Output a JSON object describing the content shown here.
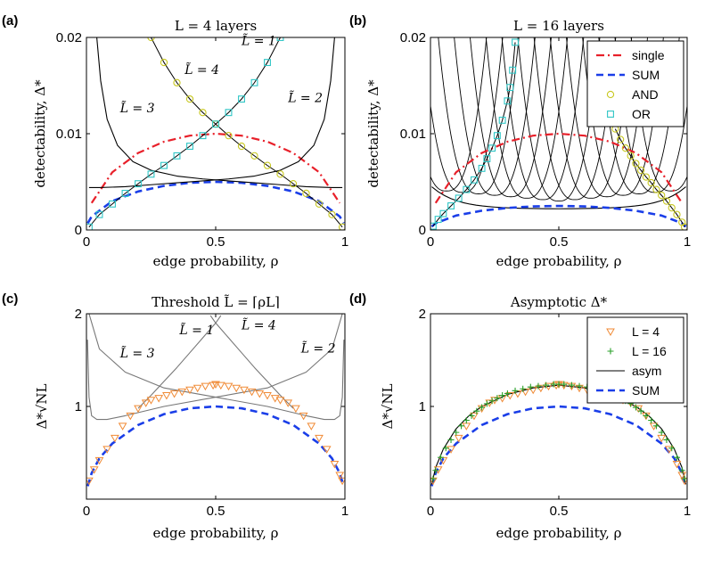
{
  "colors": {
    "single": "#e8202a",
    "sum": "#1a3ee8",
    "and": "#c8c821",
    "or": "#2ec6c6",
    "l4": "#f08a35",
    "l16": "#2aa02a",
    "curve": "#000000",
    "curve_light": "#777777"
  },
  "chart_data": [
    {
      "id": "a",
      "type": "line",
      "panel_label": "(a)",
      "title": "L = 4 layers",
      "xlabel": "edge probability, ρ",
      "ylabel": "detectability, Δ*",
      "xlim": [
        0,
        1
      ],
      "ylim": [
        0,
        0.02
      ],
      "xticks": [
        0,
        0.5,
        1
      ],
      "xtick_labels": [
        "0",
        "0.5",
        "1"
      ],
      "yticks": [
        0,
        0.01,
        0.02
      ],
      "ytick_labels": [
        "0",
        "0.01",
        "0.02"
      ],
      "annotations": [
        {
          "text": "L̃ = 1",
          "x": 0.6,
          "y": 0.0192
        },
        {
          "text": "L̃ = 4",
          "x": 0.38,
          "y": 0.0162
        },
        {
          "text": "L̃ = 3",
          "x": 0.13,
          "y": 0.0122
        },
        {
          "text": "L̃ = 2",
          "x": 0.78,
          "y": 0.0133
        }
      ],
      "series": [
        {
          "name": "single",
          "style": "dashdot",
          "color_key": "single",
          "x": [
            0.02,
            0.1,
            0.2,
            0.3,
            0.4,
            0.5,
            0.6,
            0.7,
            0.8,
            0.9,
            0.98
          ],
          "y": [
            0.0028,
            0.006,
            0.008,
            0.00917,
            0.0098,
            0.01,
            0.0098,
            0.00917,
            0.008,
            0.006,
            0.0028
          ]
        },
        {
          "name": "SUM",
          "style": "dashed",
          "color_key": "sum",
          "x": [
            0.005,
            0.02,
            0.1,
            0.2,
            0.3,
            0.4,
            0.5,
            0.6,
            0.7,
            0.8,
            0.9,
            0.98,
            0.995
          ],
          "y": [
            0.0007,
            0.0014,
            0.003,
            0.004,
            0.00458,
            0.0049,
            0.005,
            0.0049,
            0.00458,
            0.004,
            0.003,
            0.0014,
            0.0007
          ]
        },
        {
          "name": "AND",
          "style": "marker-circle",
          "color_key": "and",
          "x": [
            0.25,
            0.3,
            0.35,
            0.4,
            0.45,
            0.5,
            0.55,
            0.6,
            0.65,
            0.7,
            0.75,
            0.8,
            0.85,
            0.9,
            0.95,
            0.99
          ],
          "y": [
            0.02,
            0.0174,
            0.0153,
            0.0136,
            0.0122,
            0.011,
            0.0098,
            0.0087,
            0.0077,
            0.0067,
            0.0058,
            0.0048,
            0.0038,
            0.0027,
            0.0016,
            0.0003
          ]
        },
        {
          "name": "OR",
          "style": "marker-square",
          "color_key": "or",
          "x": [
            0.01,
            0.05,
            0.1,
            0.15,
            0.2,
            0.25,
            0.3,
            0.35,
            0.4,
            0.45,
            0.5,
            0.55,
            0.6,
            0.65,
            0.7,
            0.75
          ],
          "y": [
            0.0003,
            0.0016,
            0.0027,
            0.0038,
            0.0048,
            0.0058,
            0.0067,
            0.0077,
            0.0087,
            0.0098,
            0.011,
            0.0122,
            0.0136,
            0.0153,
            0.0174,
            0.02
          ]
        },
        {
          "name": "L̃ = 3",
          "style": "solid",
          "color_key": "curve",
          "x": [
            0.04,
            0.055,
            0.08,
            0.12,
            0.18,
            0.25,
            0.35,
            0.45,
            0.55,
            0.65,
            0.75,
            0.85,
            0.95,
            0.99
          ],
          "y": [
            0.02,
            0.0155,
            0.0115,
            0.0088,
            0.0071,
            0.0062,
            0.0056,
            0.0053,
            0.0051,
            0.0049,
            0.0047,
            0.0045,
            0.0044,
            0.0044
          ]
        },
        {
          "name": "L̃ = 2",
          "style": "solid",
          "color_key": "curve",
          "x": [
            0.01,
            0.05,
            0.15,
            0.25,
            0.35,
            0.45,
            0.55,
            0.65,
            0.75,
            0.82,
            0.88,
            0.92,
            0.945,
            0.96
          ],
          "y": [
            0.0044,
            0.0044,
            0.0045,
            0.0047,
            0.0049,
            0.0051,
            0.0053,
            0.0056,
            0.0062,
            0.0071,
            0.0088,
            0.0115,
            0.0155,
            0.02
          ]
        }
      ]
    },
    {
      "id": "b",
      "type": "line",
      "panel_label": "(b)",
      "title": "L = 16 layers",
      "xlabel": "edge probability, ρ",
      "ylabel": "detectability, Δ*",
      "xlim": [
        0,
        1
      ],
      "ylim": [
        0,
        0.02
      ],
      "xticks": [
        0,
        0.5,
        1
      ],
      "xtick_labels": [
        "0",
        "0.5",
        "1"
      ],
      "yticks": [
        0,
        0.01,
        0.02
      ],
      "ytick_labels": [
        "0",
        "0.01",
        "0.02"
      ],
      "legend": {
        "placement": "top-right",
        "entries": [
          "single",
          "SUM",
          "AND",
          "OR"
        ]
      },
      "series": [
        {
          "name": "single",
          "style": "dashdot",
          "color_key": "single",
          "x": [
            0.02,
            0.1,
            0.2,
            0.3,
            0.4,
            0.5,
            0.6,
            0.7,
            0.8,
            0.9,
            0.98
          ],
          "y": [
            0.0028,
            0.006,
            0.008,
            0.00917,
            0.0098,
            0.01,
            0.0098,
            0.00917,
            0.008,
            0.006,
            0.0028
          ]
        },
        {
          "name": "SUM",
          "style": "dashed",
          "color_key": "sum",
          "x": [
            0.005,
            0.02,
            0.1,
            0.2,
            0.3,
            0.4,
            0.5,
            0.6,
            0.7,
            0.8,
            0.9,
            0.98,
            0.995
          ],
          "y": [
            0.00035,
            0.0007,
            0.0015,
            0.002,
            0.00229,
            0.00245,
            0.0025,
            0.00245,
            0.00229,
            0.002,
            0.0015,
            0.0007,
            0.00035
          ]
        },
        {
          "name": "AND",
          "style": "marker-circle",
          "color_key": "and",
          "x": [
            0.72,
            0.74,
            0.76,
            0.78,
            0.8,
            0.82,
            0.84,
            0.86,
            0.88,
            0.9,
            0.92,
            0.94,
            0.96,
            0.98,
            0.99
          ],
          "y": [
            0.0105,
            0.0094,
            0.0085,
            0.0077,
            0.0069,
            0.0062,
            0.0055,
            0.0049,
            0.0042,
            0.0036,
            0.003,
            0.0023,
            0.0016,
            0.0008,
            0.0003
          ]
        },
        {
          "name": "OR",
          "style": "marker-square",
          "color_key": "or",
          "x": [
            0.01,
            0.03,
            0.05,
            0.08,
            0.11,
            0.14,
            0.17,
            0.2,
            0.22,
            0.24,
            0.26,
            0.28,
            0.3,
            0.31,
            0.32,
            0.33
          ],
          "y": [
            0.0004,
            0.0011,
            0.0017,
            0.0025,
            0.0033,
            0.0042,
            0.0052,
            0.0064,
            0.0074,
            0.0085,
            0.0098,
            0.0114,
            0.0134,
            0.0148,
            0.0166,
            0.0195
          ]
        }
      ]
    },
    {
      "id": "c",
      "type": "line",
      "panel_label": "(c)",
      "title": "Threshold L̃ = ⌈ρL⌉",
      "xlabel": "edge probability, ρ",
      "ylabel": "Δ*√NL",
      "xlim": [
        0,
        1
      ],
      "ylim": [
        0,
        2
      ],
      "xticks": [
        0,
        0.5,
        1
      ],
      "xtick_labels": [
        "0",
        "0.5",
        "1"
      ],
      "yticks": [
        1,
        2
      ],
      "ytick_labels": [
        "1",
        "2"
      ],
      "annotations": [
        {
          "text": "L̃ = 1",
          "x": 0.36,
          "y": 1.78
        },
        {
          "text": "L̃ = 4",
          "x": 0.6,
          "y": 1.83
        },
        {
          "text": "L̃ = 3",
          "x": 0.13,
          "y": 1.53
        },
        {
          "text": "L̃ = 2",
          "x": 0.83,
          "y": 1.58
        }
      ],
      "series": [
        {
          "name": "SUM",
          "style": "dashed",
          "color_key": "sum",
          "x": [
            0.005,
            0.02,
            0.05,
            0.1,
            0.2,
            0.3,
            0.4,
            0.5,
            0.6,
            0.7,
            0.8,
            0.9,
            0.95,
            0.98,
            0.995
          ],
          "y": [
            0.14,
            0.28,
            0.44,
            0.6,
            0.8,
            0.917,
            0.98,
            1.0,
            0.98,
            0.917,
            0.8,
            0.6,
            0.44,
            0.28,
            0.14
          ]
        },
        {
          "name": "L = 4",
          "style": "marker-triangle",
          "color_key": "l4",
          "x": [
            0.01,
            0.03,
            0.05,
            0.08,
            0.11,
            0.14,
            0.17,
            0.2,
            0.23,
            0.25,
            0.28,
            0.31,
            0.34,
            0.37,
            0.4,
            0.43,
            0.46,
            0.49,
            0.5,
            0.52,
            0.55,
            0.58,
            0.61,
            0.64,
            0.67,
            0.7,
            0.73,
            0.75,
            0.78,
            0.81,
            0.84,
            0.87,
            0.9,
            0.93,
            0.96,
            0.98,
            0.99
          ],
          "y": [
            0.2,
            0.32,
            0.42,
            0.54,
            0.66,
            0.79,
            0.9,
            0.98,
            1.04,
            1.07,
            1.09,
            1.12,
            1.14,
            1.16,
            1.18,
            1.2,
            1.22,
            1.23,
            1.24,
            1.23,
            1.22,
            1.2,
            1.18,
            1.16,
            1.14,
            1.12,
            1.09,
            1.07,
            1.04,
            0.98,
            0.9,
            0.79,
            0.66,
            0.54,
            0.38,
            0.26,
            0.2
          ]
        },
        {
          "name": "L̃ = 3",
          "style": "solid",
          "color_key": "curve_light",
          "x": [
            0.004,
            0.01,
            0.02,
            0.04,
            0.08,
            0.15,
            0.3,
            0.5,
            0.7,
            0.85,
            0.95,
            0.99
          ],
          "y": [
            1.72,
            1.1,
            0.9,
            0.86,
            0.86,
            0.9,
            1.0,
            1.1,
            1.2,
            1.37,
            1.62,
            2.0
          ]
        },
        {
          "name": "L̃ = 2",
          "style": "solid",
          "color_key": "curve_light",
          "x": [
            0.01,
            0.05,
            0.15,
            0.3,
            0.5,
            0.7,
            0.85,
            0.92,
            0.96,
            0.98,
            0.99,
            0.996
          ],
          "y": [
            2.0,
            1.62,
            1.37,
            1.2,
            1.1,
            1.0,
            0.9,
            0.86,
            0.86,
            0.9,
            1.1,
            1.72
          ]
        },
        {
          "name": "L̃ = 1",
          "style": "solid",
          "color_key": "curve_light",
          "x": [
            0.2,
            0.25,
            0.3,
            0.35,
            0.4,
            0.45,
            0.5,
            0.52
          ],
          "y": [
            0.98,
            1.12,
            1.27,
            1.42,
            1.58,
            1.74,
            1.9,
            1.98
          ]
        },
        {
          "name": "L̃ = 4",
          "style": "solid",
          "color_key": "curve_light",
          "x": [
            0.48,
            0.5,
            0.55,
            0.6,
            0.65,
            0.7,
            0.75,
            0.8
          ],
          "y": [
            1.98,
            1.9,
            1.74,
            1.58,
            1.42,
            1.27,
            1.12,
            0.98
          ]
        }
      ]
    },
    {
      "id": "d",
      "type": "line",
      "panel_label": "(d)",
      "title": "Asymptotic Δ*",
      "xlabel": "edge probability, ρ",
      "ylabel": "Δ*√NL",
      "xlim": [
        0,
        1
      ],
      "ylim": [
        0,
        2
      ],
      "xticks": [
        0,
        0.5,
        1
      ],
      "xtick_labels": [
        "0",
        "0.5",
        "1"
      ],
      "yticks": [
        1,
        2
      ],
      "ytick_labels": [
        "1",
        "2"
      ],
      "legend": {
        "placement": "top-right",
        "entries": [
          "L = 4",
          "L = 16",
          "asym",
          "SUM"
        ]
      },
      "series": [
        {
          "name": "SUM",
          "style": "dashed",
          "color_key": "sum",
          "x": [
            0.005,
            0.02,
            0.05,
            0.1,
            0.2,
            0.3,
            0.4,
            0.5,
            0.6,
            0.7,
            0.8,
            0.9,
            0.95,
            0.98,
            0.995
          ],
          "y": [
            0.14,
            0.28,
            0.44,
            0.6,
            0.8,
            0.917,
            0.98,
            1.0,
            0.98,
            0.917,
            0.8,
            0.6,
            0.44,
            0.28,
            0.14
          ]
        },
        {
          "name": "asym",
          "style": "solid",
          "color_key": "curve",
          "x": [
            0.005,
            0.02,
            0.05,
            0.1,
            0.15,
            0.2,
            0.3,
            0.4,
            0.5,
            0.6,
            0.7,
            0.8,
            0.85,
            0.9,
            0.95,
            0.98,
            0.995
          ],
          "y": [
            0.16,
            0.34,
            0.54,
            0.76,
            0.9,
            1.0,
            1.13,
            1.2,
            1.23,
            1.2,
            1.13,
            1.0,
            0.9,
            0.76,
            0.54,
            0.34,
            0.16
          ]
        },
        {
          "name": "L = 4",
          "style": "marker-triangle",
          "color_key": "l4",
          "x": [
            0.01,
            0.03,
            0.05,
            0.08,
            0.11,
            0.14,
            0.17,
            0.2,
            0.23,
            0.25,
            0.28,
            0.31,
            0.34,
            0.37,
            0.4,
            0.43,
            0.46,
            0.49,
            0.5,
            0.52,
            0.55,
            0.58,
            0.61,
            0.64,
            0.67,
            0.7,
            0.73,
            0.75,
            0.78,
            0.81,
            0.84,
            0.87,
            0.9,
            0.93,
            0.96,
            0.98,
            0.99
          ],
          "y": [
            0.2,
            0.32,
            0.42,
            0.54,
            0.66,
            0.79,
            0.9,
            0.98,
            1.04,
            1.07,
            1.09,
            1.12,
            1.14,
            1.16,
            1.18,
            1.2,
            1.22,
            1.23,
            1.24,
            1.23,
            1.22,
            1.2,
            1.18,
            1.16,
            1.14,
            1.12,
            1.09,
            1.07,
            1.04,
            0.98,
            0.9,
            0.79,
            0.66,
            0.54,
            0.38,
            0.26,
            0.2
          ]
        },
        {
          "name": "L = 16",
          "style": "marker-plus",
          "color_key": "l16",
          "x": [
            0.01,
            0.02,
            0.04,
            0.06,
            0.08,
            0.1,
            0.12,
            0.14,
            0.16,
            0.18,
            0.2,
            0.22,
            0.24,
            0.26,
            0.28,
            0.3,
            0.33,
            0.36,
            0.39,
            0.42,
            0.45,
            0.48,
            0.5,
            0.52,
            0.55,
            0.58,
            0.61,
            0.64,
            0.67,
            0.7,
            0.72,
            0.74,
            0.76,
            0.78,
            0.8,
            0.82,
            0.84,
            0.86,
            0.88,
            0.9,
            0.92,
            0.94,
            0.96,
            0.98,
            0.99
          ],
          "y": [
            0.22,
            0.31,
            0.45,
            0.55,
            0.64,
            0.72,
            0.79,
            0.85,
            0.9,
            0.95,
            0.99,
            1.03,
            1.06,
            1.09,
            1.12,
            1.14,
            1.17,
            1.19,
            1.21,
            1.22,
            1.23,
            1.24,
            1.24,
            1.24,
            1.23,
            1.22,
            1.21,
            1.19,
            1.17,
            1.14,
            1.12,
            1.09,
            1.06,
            1.03,
            0.99,
            0.95,
            0.9,
            0.85,
            0.79,
            0.72,
            0.64,
            0.55,
            0.45,
            0.31,
            0.22
          ]
        }
      ]
    }
  ]
}
